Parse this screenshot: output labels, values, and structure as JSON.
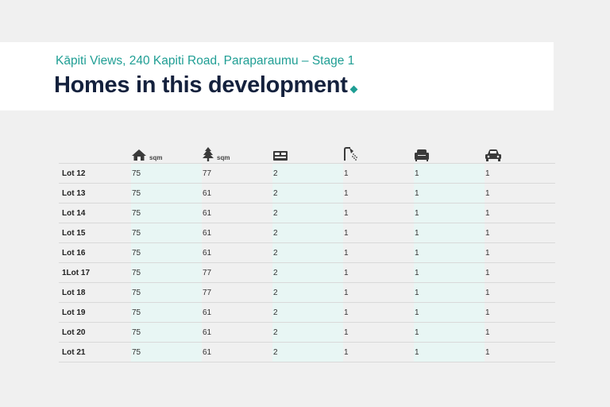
{
  "header": {
    "subtitle": "Kāpiti Views, 240 Kapiti Road, Paraparaumu – Stage 1",
    "title": "Homes in this development"
  },
  "table": {
    "columns": [
      {
        "icon": "house-icon",
        "unit": "sqm"
      },
      {
        "icon": "tree-icon",
        "unit": "sqm"
      },
      {
        "icon": "bed-icon",
        "unit": ""
      },
      {
        "icon": "shower-icon",
        "unit": ""
      },
      {
        "icon": "armchair-icon",
        "unit": ""
      },
      {
        "icon": "car-icon",
        "unit": ""
      }
    ],
    "rows": [
      {
        "lot": "Lot 12",
        "values": [
          "75",
          "77",
          "2",
          "1",
          "1",
          "1"
        ]
      },
      {
        "lot": "Lot 13",
        "values": [
          "75",
          "61",
          "2",
          "1",
          "1",
          "1"
        ]
      },
      {
        "lot": "Lot 14",
        "values": [
          "75",
          "61",
          "2",
          "1",
          "1",
          "1"
        ]
      },
      {
        "lot": "Lot 15",
        "values": [
          "75",
          "61",
          "2",
          "1",
          "1",
          "1"
        ]
      },
      {
        "lot": "Lot 16",
        "values": [
          "75",
          "61",
          "2",
          "1",
          "1",
          "1"
        ]
      },
      {
        "lot": "1Lot 17",
        "values": [
          "75",
          "77",
          "2",
          "1",
          "1",
          "1"
        ]
      },
      {
        "lot": "Lot 18",
        "values": [
          "75",
          "77",
          "2",
          "1",
          "1",
          "1"
        ]
      },
      {
        "lot": "Lot 19",
        "values": [
          "75",
          "61",
          "2",
          "1",
          "1",
          "1"
        ]
      },
      {
        "lot": "Lot 20",
        "values": [
          "75",
          "61",
          "2",
          "1",
          "1",
          "1"
        ]
      },
      {
        "lot": "Lot 21",
        "values": [
          "75",
          "61",
          "2",
          "1",
          "1",
          "1"
        ]
      }
    ]
  },
  "colors": {
    "accent": "#1f9e94",
    "title": "#14213d",
    "column_tint": "#e8f6f4",
    "background": "#f0f0f0"
  }
}
